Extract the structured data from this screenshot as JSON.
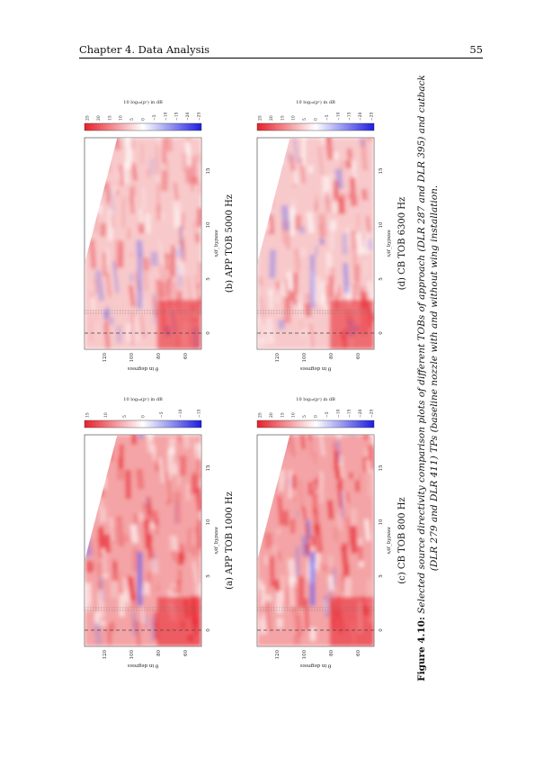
{
  "header": {
    "chapter": "Chapter 4.  Data Analysis",
    "page_number": "55"
  },
  "subfigures": [
    {
      "label": "(a) APP TOB 1000 Hz",
      "cbar_ticks": [
        "15",
        "10",
        "5",
        "0",
        "−5",
        "−10",
        "−15"
      ]
    },
    {
      "label": "(b) APP TOB 5000 Hz",
      "cbar_ticks": [
        "25",
        "20",
        "15",
        "10",
        "5",
        "0",
        "−5",
        "−10",
        "−15",
        "−20",
        "−25"
      ]
    },
    {
      "label": "(c) CB TOB 800 Hz",
      "cbar_ticks": [
        "25",
        "20",
        "15",
        "10",
        "5",
        "0",
        "−5",
        "−10",
        "−15",
        "−20",
        "−25"
      ]
    },
    {
      "label": "(d) CB TOB 6300 Hz",
      "cbar_ticks": [
        "25",
        "20",
        "15",
        "10",
        "5",
        "0",
        "−5",
        "−10",
        "−15",
        "−20",
        "−25"
      ]
    }
  ],
  "axes": {
    "xlabel": "x/d_bypass",
    "ylabel": "θ in degrees",
    "cbar_label": "10 log₁₀(pᶜ) in dB",
    "x_ticks": [
      "0",
      "5",
      "10",
      "15"
    ],
    "y_ticks": [
      "60",
      "80",
      "100",
      "120"
    ]
  },
  "caption": {
    "prefix": "Figure 4.10:",
    "text": " Selected source directivity comparison plots of different TOBs of approach (DLR 287 and DLR 395) and cutback (DLR 279 and DLR 411) TPs (baseline nozzle with and without wing installation."
  },
  "colors": {
    "positive": "#e8202a",
    "negative": "#1d1de0",
    "neutral": "#ffffff"
  }
}
